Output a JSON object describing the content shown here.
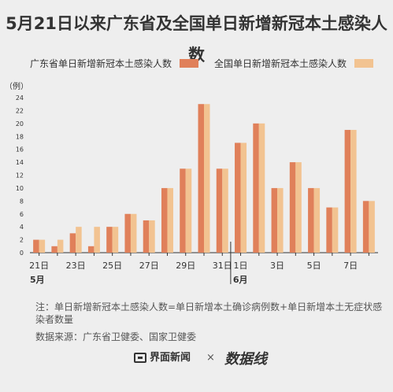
{
  "title": "5月21日以来广东省及全国单日新增新冠本土感染人数",
  "legend": {
    "guangdong": "广东省单日新增新冠本土感染人数",
    "national": "全国单日新增新冠本土感染人数"
  },
  "colors": {
    "guangdong": "#e0805a",
    "national": "#f2c391",
    "background": "#eeeeee",
    "axis": "#333333",
    "text": "#333333"
  },
  "chart_data": {
    "type": "bar",
    "ylabel": "（例）",
    "ylim": [
      0,
      24
    ],
    "yticks": [
      0,
      2,
      4,
      6,
      8,
      10,
      12,
      14,
      16,
      18,
      20,
      22,
      24
    ],
    "categories": [
      "5-21",
      "5-22",
      "5-23",
      "5-24",
      "5-25",
      "5-26",
      "5-27",
      "5-28",
      "5-29",
      "5-30",
      "5-31",
      "6-1",
      "6-2",
      "6-3",
      "6-4",
      "6-5",
      "6-6",
      "6-7",
      "6-8"
    ],
    "xtick_labels": [
      {
        "index": 0,
        "label": "21日"
      },
      {
        "index": 2,
        "label": "23日"
      },
      {
        "index": 4,
        "label": "25日"
      },
      {
        "index": 6,
        "label": "27日"
      },
      {
        "index": 8,
        "label": "29日"
      },
      {
        "index": 10,
        "label": "31日"
      },
      {
        "index": 11,
        "label": "1日"
      },
      {
        "index": 13,
        "label": "3日"
      },
      {
        "index": 15,
        "label": "5日"
      },
      {
        "index": 17,
        "label": "7日"
      }
    ],
    "month_labels": [
      {
        "index": 0,
        "label": "5月"
      },
      {
        "index": 11,
        "label": "6月"
      }
    ],
    "series": [
      {
        "name": "广东省单日新增新冠本土感染人数",
        "values": [
          2,
          1,
          3,
          1,
          4,
          6,
          5,
          10,
          13,
          23,
          13,
          17,
          20,
          10,
          14,
          10,
          7,
          19,
          8
        ]
      },
      {
        "name": "全国单日新增新冠本土感染人数",
        "values": [
          2,
          2,
          4,
          4,
          4,
          6,
          5,
          10,
          13,
          23,
          13,
          17,
          20,
          10,
          14,
          10,
          7,
          19,
          8
        ]
      }
    ],
    "grid": false,
    "legend_position": "top"
  },
  "note": "注：单日新增新冠本土感染人数=单日新增本土确诊病例数+单日新增本土无症状感染者数量",
  "source": "数据来源：广东省卫健委、国家卫健委",
  "footer": {
    "brand": "界面新闻",
    "separator": "×",
    "partner_logo": "数据线"
  }
}
